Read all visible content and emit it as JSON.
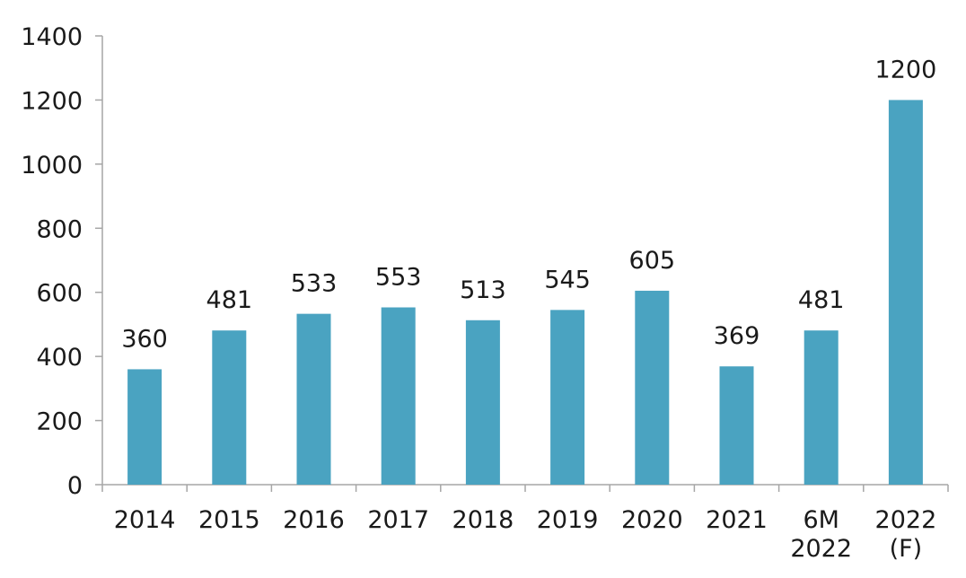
{
  "chart_data": {
    "type": "bar",
    "categories": [
      [
        "2014"
      ],
      [
        "2015"
      ],
      [
        "2016"
      ],
      [
        "2017"
      ],
      [
        "2018"
      ],
      [
        "2019"
      ],
      [
        "2020"
      ],
      [
        "2021"
      ],
      [
        "6M",
        "2022"
      ],
      [
        "2022",
        "(F)"
      ]
    ],
    "values": [
      360,
      481,
      533,
      553,
      513,
      545,
      605,
      369,
      481,
      1200
    ],
    "data_labels": [
      "360",
      "481",
      "533",
      "553",
      "513",
      "545",
      "605",
      "369",
      "481",
      "1200"
    ],
    "ylim": [
      0,
      1400
    ],
    "yticks": [
      0,
      200,
      400,
      600,
      800,
      1000,
      1200,
      1400
    ],
    "title": "",
    "xlabel": "",
    "ylabel": "",
    "grid": false,
    "legend": "none",
    "colors": {
      "bar": "#4aa3c1",
      "axis": "#a6a6a6",
      "text": "#1a1a1a"
    }
  }
}
